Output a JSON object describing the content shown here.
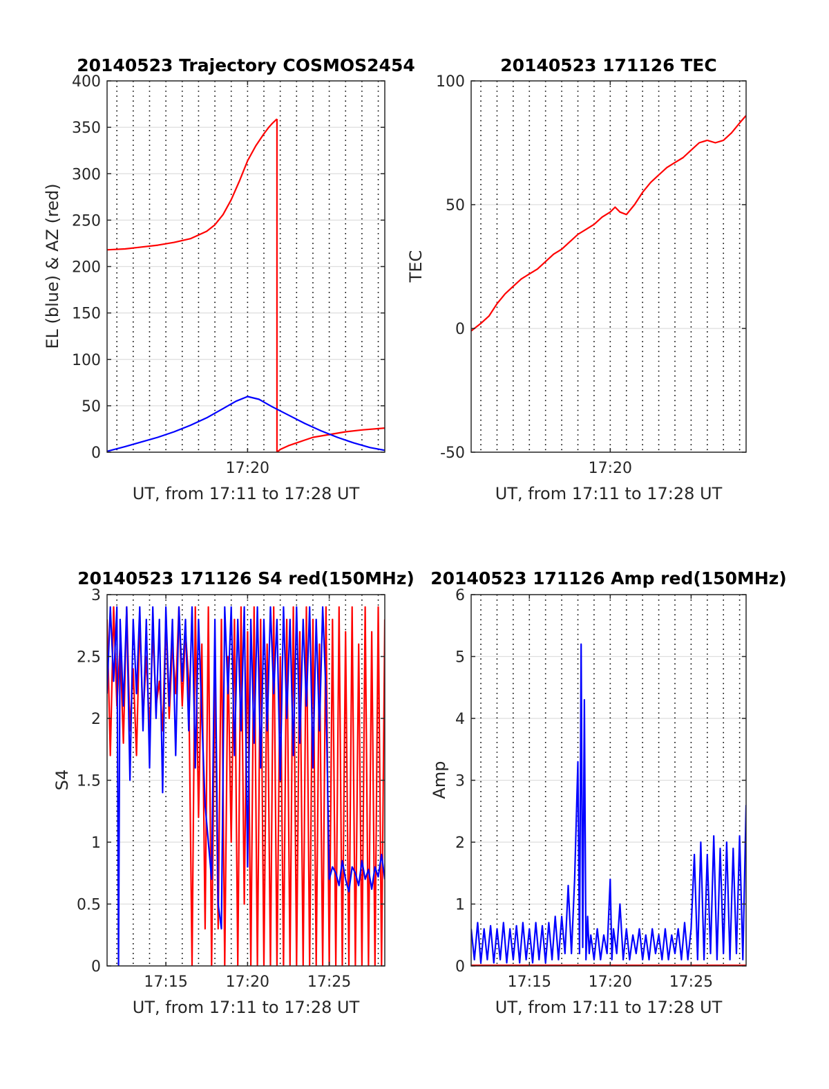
{
  "figure": {
    "x_time_start_min": 671.4,
    "x_time_end_min": 688.4
  },
  "chart_data": [
    {
      "id": "trajectory",
      "type": "line",
      "title": "20140523 Trajectory COSMOS2454",
      "xlabel": "UT, from 17:11 to 17:28 UT",
      "ylabel": "EL (blue) & AZ (red)",
      "ylim": [
        0,
        400
      ],
      "yticks": [
        0,
        50,
        100,
        150,
        200,
        250,
        300,
        350,
        400
      ],
      "xticks": [
        {
          "value": 680,
          "label": "17:20"
        }
      ],
      "grid": true,
      "series": [
        {
          "color": "#ff0000",
          "segments": [
            {
              "x": [
                671.4,
                672.5,
                673.5,
                674.5,
                675.5,
                676.5,
                677.5,
                678.0,
                678.5,
                679.0,
                679.5,
                680.0,
                680.5,
                681.0,
                681.3,
                681.5,
                681.8
              ],
              "y": [
                218,
                219,
                221,
                223,
                226,
                230,
                238,
                245,
                256,
                272,
                292,
                314,
                330,
                343,
                350,
                354,
                359
              ]
            },
            {
              "x": [
                681.8,
                681.8
              ],
              "y": [
                359,
                0
              ]
            },
            {
              "x": [
                681.8,
                682.0,
                682.5,
                683.0,
                683.5,
                684.0,
                685.0,
                686.0,
                687.0,
                688.4
              ],
              "y": [
                0,
                3,
                7,
                10,
                13,
                16,
                19,
                22,
                24,
                26
              ]
            }
          ]
        },
        {
          "color": "#0000ff",
          "segments": [
            {
              "x": [
                671.4,
                672.5,
                673.5,
                674.5,
                675.5,
                676.5,
                677.5,
                678.5,
                679.3,
                680.0,
                680.7,
                681.5,
                682.5,
                683.5,
                684.5,
                685.5,
                686.5,
                687.5,
                688.4
              ],
              "y": [
                1,
                6,
                11,
                16,
                22,
                29,
                37,
                47,
                55,
                60,
                57,
                49,
                40,
                31,
                23,
                16,
                10,
                5,
                2
              ]
            }
          ]
        }
      ]
    },
    {
      "id": "tec",
      "type": "line",
      "title": "20140523 171126 TEC",
      "xlabel": "UT, from 17:11 to 17:28 UT",
      "ylabel": "TEC",
      "ylim": [
        -50,
        100
      ],
      "yticks": [
        -50,
        0,
        50,
        100
      ],
      "xticks": [
        {
          "value": 680,
          "label": "17:20"
        }
      ],
      "grid": true,
      "series": [
        {
          "color": "#ff0000",
          "segments": [
            {
              "x": [
                671.4,
                672.0,
                672.5,
                673.0,
                673.5,
                674.0,
                674.5,
                675.0,
                675.5,
                676.0,
                676.5,
                677.0,
                677.5,
                678.0,
                678.5,
                679.0,
                679.5,
                680.0,
                680.3,
                680.6,
                681.0,
                681.5,
                682.0,
                682.5,
                683.0,
                683.5,
                684.0,
                684.5,
                685.0,
                685.5,
                686.0,
                686.5,
                687.0,
                687.5,
                688.0,
                688.4
              ],
              "y": [
                -1,
                2,
                5,
                10,
                14,
                17,
                20,
                22,
                24,
                27,
                30,
                32,
                35,
                38,
                40,
                42,
                45,
                47,
                49,
                47,
                46,
                50,
                55,
                59,
                62,
                65,
                67,
                69,
                72,
                75,
                76,
                75,
                76,
                79,
                83,
                86
              ]
            }
          ]
        }
      ]
    },
    {
      "id": "s4",
      "type": "line",
      "title": "20140523 171126 S4 red(150MHz)",
      "xlabel": "UT, from 17:11 to 17:28 UT",
      "ylabel": "S4",
      "ylim": [
        0,
        3
      ],
      "yticks": [
        0,
        0.5,
        1,
        1.5,
        2,
        2.5,
        3
      ],
      "ytick_labels": [
        "0",
        "0.5",
        "1",
        "1.5",
        "2",
        "2.5",
        "3"
      ],
      "xticks": [
        {
          "value": 675,
          "label": "17:15"
        },
        {
          "value": 680,
          "label": "17:20"
        },
        {
          "value": 685,
          "label": "17:25"
        }
      ],
      "grid": true,
      "series": [
        {
          "color": "#ff0000",
          "segments": [
            {
              "x": [
                671.4,
                671.6,
                671.8,
                672.0,
                672.2,
                672.4,
                672.6,
                672.8,
                673.0,
                673.2,
                673.4,
                673.6,
                673.8,
                674.0,
                674.2,
                674.4,
                674.6,
                674.8,
                675.0,
                675.2,
                675.4,
                675.6,
                675.8,
                676.0,
                676.2,
                676.4,
                676.6,
                676.8,
                677.0,
                677.2,
                677.4,
                677.6,
                677.8,
                678.0,
                678.2,
                678.4,
                678.6,
                678.8,
                679.0,
                679.2,
                679.4,
                679.6,
                679.8,
                680.0,
                680.2,
                680.4,
                680.6,
                680.8,
                681.0,
                681.2,
                681.4,
                681.6,
                681.8,
                682.0,
                682.2,
                682.4,
                682.6,
                682.8,
                683.0,
                683.2,
                683.4,
                683.6,
                683.8,
                684.0,
                684.2,
                684.4,
                684.6,
                684.8,
                685.0,
                685.2,
                685.4,
                685.6,
                685.8,
                686.0,
                686.2,
                686.4,
                686.6,
                686.8,
                687.0,
                687.2,
                687.4,
                687.6,
                687.8,
                688.0,
                688.2,
                688.4
              ],
              "y": [
                2.8,
                1.7,
                2.9,
                2.1,
                2.6,
                1.8,
                2.9,
                1.9,
                2.4,
                1.7,
                2.8,
                2.0,
                2.5,
                1.9,
                2.7,
                2.1,
                2.3,
                1.9,
                2.8,
                2.0,
                2.6,
                2.2,
                2.9,
                2.1,
                2.7,
                2.3,
                0.0,
                2.9,
                1.2,
                2.6,
                0.3,
                2.9,
                0.0,
                2.4,
                0.3,
                2.8,
                0.0,
                2.5,
                1.0,
                2.8,
                0.0,
                2.9,
                0.5,
                2.7,
                0.0,
                2.9,
                0.0,
                2.8,
                0.0,
                2.6,
                0.0,
                2.9,
                0.0,
                2.5,
                0.0,
                2.8,
                0.0,
                2.9,
                0.0,
                2.7,
                0.0,
                2.9,
                0.0,
                2.8,
                0.0,
                2.6,
                0.0,
                2.9,
                0.0,
                2.8,
                0.0,
                2.9,
                0.0,
                2.7,
                0.0,
                2.9,
                0.0,
                2.6,
                0.0,
                2.9,
                0.0,
                2.7,
                0.0,
                2.9,
                0.0,
                2.8
              ]
            }
          ]
        },
        {
          "color": "#0000ff",
          "segments": [
            {
              "x": [
                671.4,
                671.6,
                671.8,
                672.0,
                672.1,
                672.2,
                672.4,
                672.6,
                672.8,
                673.0,
                673.2,
                673.4,
                673.6,
                673.8,
                674.0,
                674.2,
                674.4,
                674.6,
                674.8,
                675.0,
                675.2,
                675.4,
                675.6,
                675.8,
                676.0,
                676.2,
                676.4,
                676.6,
                676.8,
                677.0,
                677.2,
                677.4,
                677.6,
                677.8,
                678.0,
                678.2,
                678.4,
                678.6,
                678.8,
                679.0,
                679.2,
                679.4,
                679.6,
                679.8,
                680.0,
                680.2,
                680.4,
                680.6,
                680.8,
                681.0,
                681.2,
                681.4,
                681.6,
                681.8,
                682.0,
                682.2,
                682.4,
                682.6,
                682.8,
                683.0,
                683.2,
                683.4,
                683.6,
                683.8,
                684.0,
                684.2,
                684.4,
                684.6,
                684.8,
                685.0,
                685.2,
                685.4,
                685.6,
                685.8,
                686.0,
                686.2,
                686.4,
                686.6,
                686.8,
                687.0,
                687.2,
                687.4,
                687.6,
                687.8,
                688.0,
                688.2,
                688.4
              ],
              "y": [
                2.2,
                2.9,
                2.3,
                2.9,
                0.0,
                2.8,
                2.1,
                2.9,
                1.5,
                2.8,
                2.2,
                2.9,
                1.9,
                2.8,
                1.6,
                2.9,
                2.0,
                2.8,
                1.4,
                2.9,
                2.1,
                2.8,
                1.7,
                2.9,
                2.3,
                2.8,
                1.9,
                2.9,
                1.6,
                2.8,
                2.0,
                1.3,
                1.0,
                0.7,
                2.8,
                0.5,
                0.3,
                2.9,
                2.2,
                2.9,
                1.7,
                2.8,
                1.9,
                2.9,
                0.8,
                2.8,
                1.8,
                2.9,
                1.6,
                2.8,
                1.9,
                2.9,
                2.2,
                2.8,
                1.5,
                2.9,
                2.0,
                2.8,
                1.7,
                2.9,
                1.8,
                2.8,
                2.1,
                2.9,
                1.6,
                2.8,
                1.9,
                2.9,
                2.2,
                0.7,
                0.8,
                0.75,
                0.65,
                0.85,
                0.7,
                0.6,
                0.8,
                0.75,
                0.65,
                0.85,
                0.7,
                0.78,
                0.62,
                0.8,
                0.72,
                0.9,
                0.7
              ]
            }
          ]
        }
      ]
    },
    {
      "id": "amp",
      "type": "line",
      "title": "20140523 171126 Amp red(150MHz)",
      "xlabel": "UT, from 17:11 to 17:28 UT",
      "ylabel": "Amp",
      "ylim": [
        0,
        6
      ],
      "yticks": [
        0,
        1,
        2,
        3,
        4,
        5,
        6
      ],
      "xticks": [
        {
          "value": 675,
          "label": "17:15"
        },
        {
          "value": 680,
          "label": "17:20"
        },
        {
          "value": 685,
          "label": "17:25"
        }
      ],
      "grid": true,
      "series": [
        {
          "color": "#ff0000",
          "segments": [
            {
              "x": [
                671.4,
                688.4
              ],
              "y": [
                0.01,
                0.01
              ]
            }
          ]
        },
        {
          "color": "#0000ff",
          "segments": [
            {
              "x": [
                671.4,
                671.6,
                671.8,
                672.0,
                672.2,
                672.4,
                672.6,
                672.8,
                673.0,
                673.2,
                673.4,
                673.6,
                673.8,
                674.0,
                674.2,
                674.4,
                674.6,
                674.8,
                675.0,
                675.2,
                675.4,
                675.6,
                675.8,
                676.0,
                676.2,
                676.4,
                676.6,
                676.8,
                677.0,
                677.2,
                677.4,
                677.6,
                677.8,
                678.0,
                678.1,
                678.2,
                678.3,
                678.4,
                678.5,
                678.6,
                678.7,
                678.8,
                679.0,
                679.2,
                679.4,
                679.6,
                679.8,
                680.0,
                680.1,
                680.2,
                680.4,
                680.6,
                680.8,
                681.0,
                681.2,
                681.4,
                681.6,
                681.8,
                682.0,
                682.2,
                682.4,
                682.6,
                682.8,
                683.0,
                683.2,
                683.4,
                683.6,
                683.8,
                684.0,
                684.2,
                684.4,
                684.6,
                684.8,
                685.0,
                685.2,
                685.4,
                685.6,
                685.8,
                686.0,
                686.2,
                686.4,
                686.6,
                686.8,
                687.0,
                687.2,
                687.4,
                687.6,
                687.8,
                688.0,
                688.2,
                688.4
              ],
              "y": [
                0.6,
                0.1,
                0.7,
                0.05,
                0.6,
                0.1,
                0.65,
                0.05,
                0.6,
                0.1,
                0.7,
                0.05,
                0.6,
                0.1,
                0.65,
                0.05,
                0.7,
                0.1,
                0.6,
                0.05,
                0.7,
                0.1,
                0.65,
                0.05,
                0.7,
                0.1,
                0.8,
                0.1,
                0.8,
                0.2,
                1.3,
                0.2,
                1.4,
                3.3,
                0.2,
                5.2,
                0.3,
                4.3,
                0.1,
                0.8,
                0.2,
                0.5,
                0.1,
                0.6,
                0.1,
                0.5,
                0.2,
                1.4,
                0.1,
                0.6,
                0.2,
                1.0,
                0.1,
                0.6,
                0.1,
                0.5,
                0.2,
                0.6,
                0.1,
                0.5,
                0.1,
                0.6,
                0.2,
                0.5,
                0.1,
                0.6,
                0.1,
                0.5,
                0.2,
                0.6,
                0.1,
                0.7,
                0.1,
                0.6,
                1.8,
                0.1,
                2.0,
                0.1,
                1.8,
                0.2,
                2.1,
                0.1,
                1.9,
                0.2,
                2.0,
                0.1,
                1.9,
                0.2,
                2.1,
                0.1,
                2.6
              ]
            }
          ]
        }
      ]
    }
  ]
}
